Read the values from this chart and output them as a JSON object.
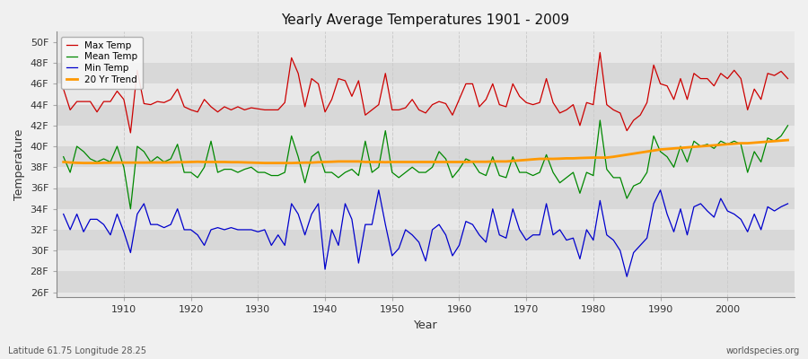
{
  "title": "Yearly Average Temperatures 1901 - 2009",
  "xlabel": "Year",
  "ylabel": "Temperature",
  "years_start": 1901,
  "years_end": 2009,
  "background_color": "#f0f0f0",
  "plot_bg_color": "#e8e8e8",
  "band_color_light": "#e8e8e8",
  "band_color_dark": "#d8d8d8",
  "grid_color": "#ffffff",
  "vgrid_color": "#cccccc",
  "max_temp_color": "#cc0000",
  "mean_temp_color": "#008800",
  "min_temp_color": "#0000cc",
  "trend_color": "#ff9900",
  "legend_labels": [
    "Max Temp",
    "Mean Temp",
    "Min Temp",
    "20 Yr Trend"
  ],
  "yticks": [
    26,
    28,
    30,
    32,
    34,
    36,
    38,
    40,
    42,
    44,
    46,
    48,
    50
  ],
  "ytick_labels": [
    "26F",
    "28F",
    "30F",
    "32F",
    "34F",
    "36F",
    "38F",
    "40F",
    "42F",
    "44F",
    "46F",
    "48F",
    "50F"
  ],
  "ylim": [
    25.5,
    51
  ],
  "xlim_start": 1900,
  "xlim_end": 2010,
  "subtitle_left": "Latitude 61.75 Longitude 28.25",
  "subtitle_right": "worldspecies.org",
  "max_temps": [
    45.5,
    43.5,
    44.3,
    44.3,
    44.3,
    43.3,
    44.3,
    44.3,
    45.3,
    44.5,
    41.3,
    47.3,
    44.1,
    44.0,
    44.3,
    44.2,
    44.5,
    45.5,
    43.8,
    43.5,
    43.3,
    44.5,
    43.8,
    43.3,
    43.8,
    43.5,
    43.8,
    43.5,
    43.7,
    43.6,
    43.5,
    43.5,
    43.5,
    44.2,
    48.5,
    47.0,
    43.8,
    46.5,
    46.0,
    43.3,
    44.5,
    46.5,
    46.3,
    44.8,
    46.3,
    43.0,
    43.5,
    44.0,
    47.0,
    43.5,
    43.5,
    43.7,
    44.5,
    43.5,
    43.2,
    44.0,
    44.3,
    44.1,
    43.0,
    44.5,
    46.0,
    46.0,
    43.8,
    44.5,
    46.0,
    44.0,
    43.8,
    46.0,
    44.8,
    44.2,
    44.0,
    44.2,
    46.5,
    44.2,
    43.2,
    43.5,
    44.0,
    42.0,
    44.2,
    44.0,
    49.0,
    44.0,
    43.5,
    43.2,
    41.5,
    42.5,
    43.0,
    44.2,
    47.8,
    46.0,
    45.8,
    44.5,
    46.5,
    44.5,
    47.0,
    46.5,
    46.5,
    45.8,
    47.0,
    46.5,
    47.3,
    46.5,
    43.5,
    45.5,
    44.5,
    47.0,
    46.8,
    47.2,
    46.5
  ],
  "mean_temps": [
    39.0,
    37.5,
    40.0,
    39.5,
    38.8,
    38.5,
    38.8,
    38.5,
    40.0,
    38.0,
    34.0,
    40.0,
    39.5,
    38.5,
    39.0,
    38.5,
    38.8,
    40.2,
    37.5,
    37.5,
    37.0,
    38.0,
    40.5,
    37.5,
    37.8,
    37.8,
    37.5,
    37.8,
    38.0,
    37.5,
    37.5,
    37.2,
    37.2,
    37.5,
    41.0,
    39.0,
    36.5,
    39.0,
    39.5,
    37.5,
    37.5,
    37.0,
    37.5,
    37.8,
    37.2,
    40.5,
    37.5,
    38.0,
    41.5,
    37.5,
    37.0,
    37.5,
    38.0,
    37.5,
    37.5,
    38.0,
    39.5,
    38.8,
    37.0,
    37.8,
    38.8,
    38.5,
    37.5,
    37.2,
    39.0,
    37.2,
    37.0,
    39.0,
    37.5,
    37.5,
    37.2,
    37.5,
    39.2,
    37.5,
    36.5,
    37.0,
    37.5,
    35.5,
    37.5,
    37.2,
    42.5,
    37.8,
    37.0,
    37.0,
    35.0,
    36.2,
    36.5,
    37.5,
    41.0,
    39.5,
    39.0,
    38.0,
    40.0,
    38.5,
    40.5,
    40.0,
    40.2,
    39.8,
    40.5,
    40.2,
    40.5,
    40.2,
    37.5,
    39.5,
    38.5,
    40.8,
    40.5,
    41.0,
    42.0
  ],
  "min_temps": [
    33.5,
    32.0,
    33.5,
    31.8,
    33.0,
    33.0,
    32.5,
    31.5,
    33.5,
    31.8,
    29.8,
    33.5,
    34.5,
    32.5,
    32.5,
    32.2,
    32.5,
    34.0,
    32.0,
    32.0,
    31.5,
    30.5,
    32.0,
    32.2,
    32.0,
    32.2,
    32.0,
    32.0,
    32.0,
    31.8,
    32.0,
    30.5,
    31.5,
    30.5,
    34.5,
    33.5,
    31.5,
    33.5,
    34.5,
    28.2,
    32.0,
    30.5,
    34.5,
    33.0,
    28.8,
    32.5,
    32.5,
    35.8,
    32.5,
    29.5,
    30.2,
    32.0,
    31.5,
    30.8,
    29.0,
    32.0,
    32.5,
    31.5,
    29.5,
    30.5,
    32.8,
    32.5,
    31.5,
    30.8,
    34.0,
    31.5,
    31.2,
    34.0,
    32.0,
    31.0,
    31.5,
    31.5,
    34.5,
    31.5,
    32.0,
    31.0,
    31.2,
    29.2,
    32.0,
    31.0,
    34.8,
    31.5,
    31.0,
    30.0,
    27.5,
    29.8,
    30.5,
    31.2,
    34.5,
    35.8,
    33.5,
    31.8,
    34.0,
    31.5,
    34.2,
    34.5,
    33.8,
    33.2,
    35.0,
    33.8,
    33.5,
    33.0,
    31.8,
    33.5,
    32.0,
    34.2,
    33.8,
    34.2,
    34.5
  ],
  "trend_temps": [
    38.5,
    38.45,
    38.42,
    38.4,
    38.4,
    38.4,
    38.42,
    38.43,
    38.44,
    38.44,
    38.44,
    38.44,
    38.44,
    38.45,
    38.45,
    38.45,
    38.46,
    38.48,
    38.48,
    38.5,
    38.52,
    38.5,
    38.5,
    38.5,
    38.5,
    38.48,
    38.48,
    38.46,
    38.44,
    38.42,
    38.4,
    38.4,
    38.4,
    38.4,
    38.4,
    38.42,
    38.44,
    38.44,
    38.48,
    38.5,
    38.52,
    38.55,
    38.55,
    38.55,
    38.55,
    38.5,
    38.5,
    38.5,
    38.48,
    38.5,
    38.5,
    38.5,
    38.5,
    38.5,
    38.5,
    38.5,
    38.5,
    38.5,
    38.5,
    38.5,
    38.5,
    38.52,
    38.52,
    38.52,
    38.55,
    38.55,
    38.55,
    38.6,
    38.65,
    38.7,
    38.75,
    38.8,
    38.8,
    38.8,
    38.82,
    38.85,
    38.85,
    38.88,
    38.9,
    38.92,
    38.92,
    38.92,
    39.0,
    39.1,
    39.2,
    39.3,
    39.4,
    39.5,
    39.6,
    39.7,
    39.75,
    39.8,
    39.85,
    39.9,
    39.95,
    40.0,
    40.05,
    40.1,
    40.15,
    40.2,
    40.25,
    40.3,
    40.3,
    40.35,
    40.4,
    40.45,
    40.5,
    40.55,
    40.6
  ]
}
